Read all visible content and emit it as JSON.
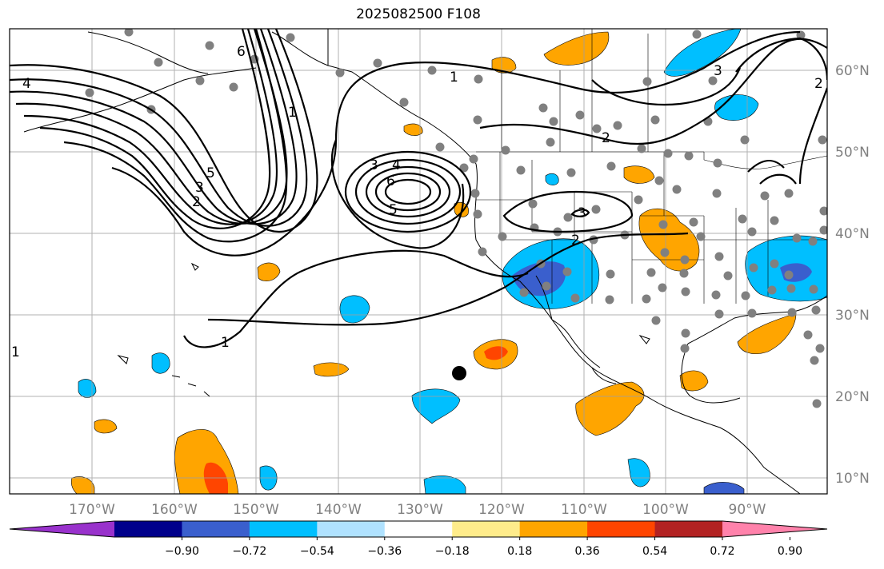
{
  "title": "2025082500 F108",
  "map": {
    "lon_ticks": [
      "170°W",
      "160°W",
      "150°W",
      "140°W",
      "130°W",
      "120°W",
      "110°W",
      "100°W",
      "90°W"
    ],
    "lat_ticks": [
      "10°N",
      "20°N",
      "30°N",
      "40°N",
      "50°N",
      "60°N"
    ],
    "contour_labels": [
      "4",
      "6",
      "5",
      "3",
      "2",
      "1",
      "3",
      "4",
      "6",
      "5",
      "1",
      "2",
      "3",
      "2",
      "3",
      "1",
      "1",
      "2"
    ]
  },
  "colorbar": {
    "labels": [
      "−0.90",
      "−0.72",
      "−0.54",
      "−0.36",
      "−0.18",
      "0.18",
      "0.36",
      "0.54",
      "0.72",
      "0.90"
    ],
    "colors": [
      "#9932CC",
      "#00008B",
      "#3A5FCD",
      "#00BFFF",
      "#B0E2FF",
      "#FFFFFF",
      "#FFEC8B",
      "#FFA500",
      "#FF4500",
      "#B22222",
      "#FF82AB"
    ]
  }
}
